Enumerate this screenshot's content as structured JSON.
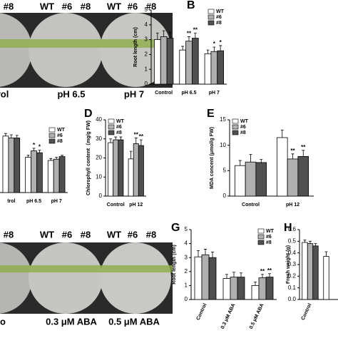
{
  "photos": [
    {
      "top_labels": [
        "#8",
        "WT",
        "#6",
        "#8",
        "WT",
        "#6",
        "#8"
      ],
      "bottom_labels": [
        "rol",
        "pH 6.5",
        "pH 7"
      ]
    },
    {
      "top_labels": [
        "#8",
        "WT",
        "#6",
        "#8",
        "WT",
        "#6",
        "#8"
      ],
      "bottom_labels": [
        "o",
        "0.3 μM ABA",
        "0.5 μM ABA"
      ]
    }
  ],
  "chart_data": [
    {
      "type": "bar",
      "label": "B",
      "ylabel": "Root length (cm)",
      "categories": [
        "Control",
        "pH 6.5",
        "pH 7"
      ],
      "series": [
        {
          "name": "WT",
          "color": "#ffffff",
          "values": [
            3.0,
            2.3,
            2.05
          ],
          "errors": [
            0.45,
            0.25,
            0.25
          ],
          "significance": [
            null,
            null,
            null
          ]
        },
        {
          "name": "#6",
          "color": "#b0b0b0",
          "values": [
            3.2,
            2.9,
            2.2
          ],
          "errors": [
            0.4,
            0.3,
            0.3
          ],
          "significance": [
            null,
            "**",
            "*"
          ]
        },
        {
          "name": "#8",
          "color": "#505050",
          "values": [
            3.1,
            3.1,
            2.25
          ],
          "errors": [
            0.4,
            0.35,
            0.35
          ],
          "significance": [
            null,
            "**",
            "*"
          ]
        }
      ],
      "ylim": [
        0,
        5
      ],
      "yticks": [
        0,
        1,
        2,
        3,
        4,
        5
      ],
      "legend": "top-right"
    },
    {
      "type": "bar",
      "categories": [
        "trol",
        "pH 6.5",
        "pH 7"
      ],
      "series": [
        {
          "name": "WT",
          "color": "#ffffff",
          "values": [
            0.88,
            0.55,
            0.5
          ],
          "errors": [
            0.04,
            0.03,
            0.03
          ],
          "significance": [
            null,
            null,
            null
          ]
        },
        {
          "name": "#6",
          "color": "#b0b0b0",
          "values": [
            0.85,
            0.65,
            0.52
          ],
          "errors": [
            0.05,
            0.04,
            0.03
          ],
          "significance": [
            null,
            "*",
            null
          ]
        },
        {
          "name": "#8",
          "color": "#505050",
          "values": [
            0.85,
            0.62,
            0.56
          ],
          "errors": [
            0.04,
            0.04,
            0.02
          ],
          "significance": [
            null,
            "*",
            null
          ]
        }
      ],
      "ylim": [
        0,
        1
      ],
      "legend": "top-right"
    },
    {
      "type": "bar",
      "label": "D",
      "ylabel": "Chlorophyll content（mg/g FW)",
      "categories": [
        "Control",
        "pH 12"
      ],
      "series": [
        {
          "name": "WT",
          "color": "#ffffff",
          "values": [
            28,
            19.5
          ],
          "errors": [
            2,
            4
          ],
          "significance": [
            null,
            null
          ]
        },
        {
          "name": "#6",
          "color": "#b0b0b0",
          "values": [
            29.5,
            27.5
          ],
          "errors": [
            1.5,
            3
          ],
          "significance": [
            null,
            "**"
          ]
        },
        {
          "name": "#8",
          "color": "#505050",
          "values": [
            29.5,
            26.5
          ],
          "errors": [
            1.5,
            3
          ],
          "significance": [
            null,
            "**"
          ]
        }
      ],
      "ylim": [
        0,
        40
      ],
      "yticks": [
        0,
        10,
        20,
        30,
        40
      ],
      "legend": "top-left"
    },
    {
      "type": "bar",
      "label": "E",
      "ylabel": "MDA concent (μmol/g FW)",
      "categories": [
        "Control",
        "pH 12"
      ],
      "series": [
        {
          "name": "WT",
          "color": "#ffffff",
          "values": [
            6,
            11.5
          ],
          "errors": [
            1,
            1.5
          ],
          "significance": [
            null,
            null
          ]
        },
        {
          "name": "#6",
          "color": "#b0b0b0",
          "values": [
            6.7,
            7.3
          ],
          "errors": [
            1.5,
            1
          ],
          "significance": [
            null,
            "**"
          ]
        },
        {
          "name": "#8",
          "color": "#505050",
          "values": [
            6.6,
            7.8
          ],
          "errors": [
            0.6,
            1.2
          ],
          "significance": [
            null,
            "**"
          ]
        }
      ],
      "ylim": [
        0,
        15
      ],
      "yticks": [
        0,
        5,
        10,
        15
      ],
      "legend": "top-left"
    },
    {
      "type": "bar",
      "label": "G",
      "ylabel": "Root length (cm)",
      "categories": [
        "Control",
        "0.3 μM ABA",
        "0.5 μM ABA"
      ],
      "series": [
        {
          "name": "WT",
          "color": "#ffffff",
          "values": [
            3.05,
            1.5,
            1.0
          ],
          "errors": [
            0.45,
            0.3,
            0.25
          ],
          "significance": [
            null,
            null,
            null
          ]
        },
        {
          "name": "#6",
          "color": "#b0b0b0",
          "values": [
            3.2,
            1.6,
            1.55
          ],
          "errors": [
            0.4,
            0.35,
            0.25
          ],
          "significance": [
            null,
            null,
            "**"
          ]
        },
        {
          "name": "#8",
          "color": "#505050",
          "values": [
            3.0,
            1.6,
            1.6
          ],
          "errors": [
            0.4,
            0.3,
            0.25
          ],
          "significance": [
            null,
            null,
            "**"
          ]
        }
      ],
      "ylim": [
        0,
        5
      ],
      "yticks": [
        0,
        1,
        2,
        3,
        4,
        5
      ],
      "legend": "top-right"
    },
    {
      "type": "bar",
      "label": "H",
      "ylabel": "Fresh weight (g)",
      "categories": [
        "Control",
        null
      ],
      "series": [
        {
          "name": "WT",
          "color": "#ffffff",
          "values": [
            0.49,
            0.37
          ],
          "errors": [
            0.02,
            0.04
          ]
        },
        {
          "name": "#6",
          "color": "#b0b0b0",
          "values": [
            0.48,
            null
          ],
          "errors": [
            0.02,
            null
          ]
        },
        {
          "name": "#8",
          "color": "#505050",
          "values": [
            0.46,
            null
          ],
          "errors": [
            0.02,
            null
          ]
        }
      ],
      "ylim": [
        0,
        0.6
      ],
      "yticks": [
        {
          "value": 0,
          "label": "0.0"
        },
        {
          "value": 0.1,
          "label": "0.1"
        },
        {
          "value": 0.2,
          "label": "0.2"
        },
        {
          "value": 0.3,
          "label": "0.3"
        },
        {
          "value": 0.4,
          "label": "0.4"
        },
        {
          "value": 0.5,
          "label": "0.5"
        },
        {
          "value": 0.6,
          "label": "0.6"
        }
      ]
    }
  ]
}
